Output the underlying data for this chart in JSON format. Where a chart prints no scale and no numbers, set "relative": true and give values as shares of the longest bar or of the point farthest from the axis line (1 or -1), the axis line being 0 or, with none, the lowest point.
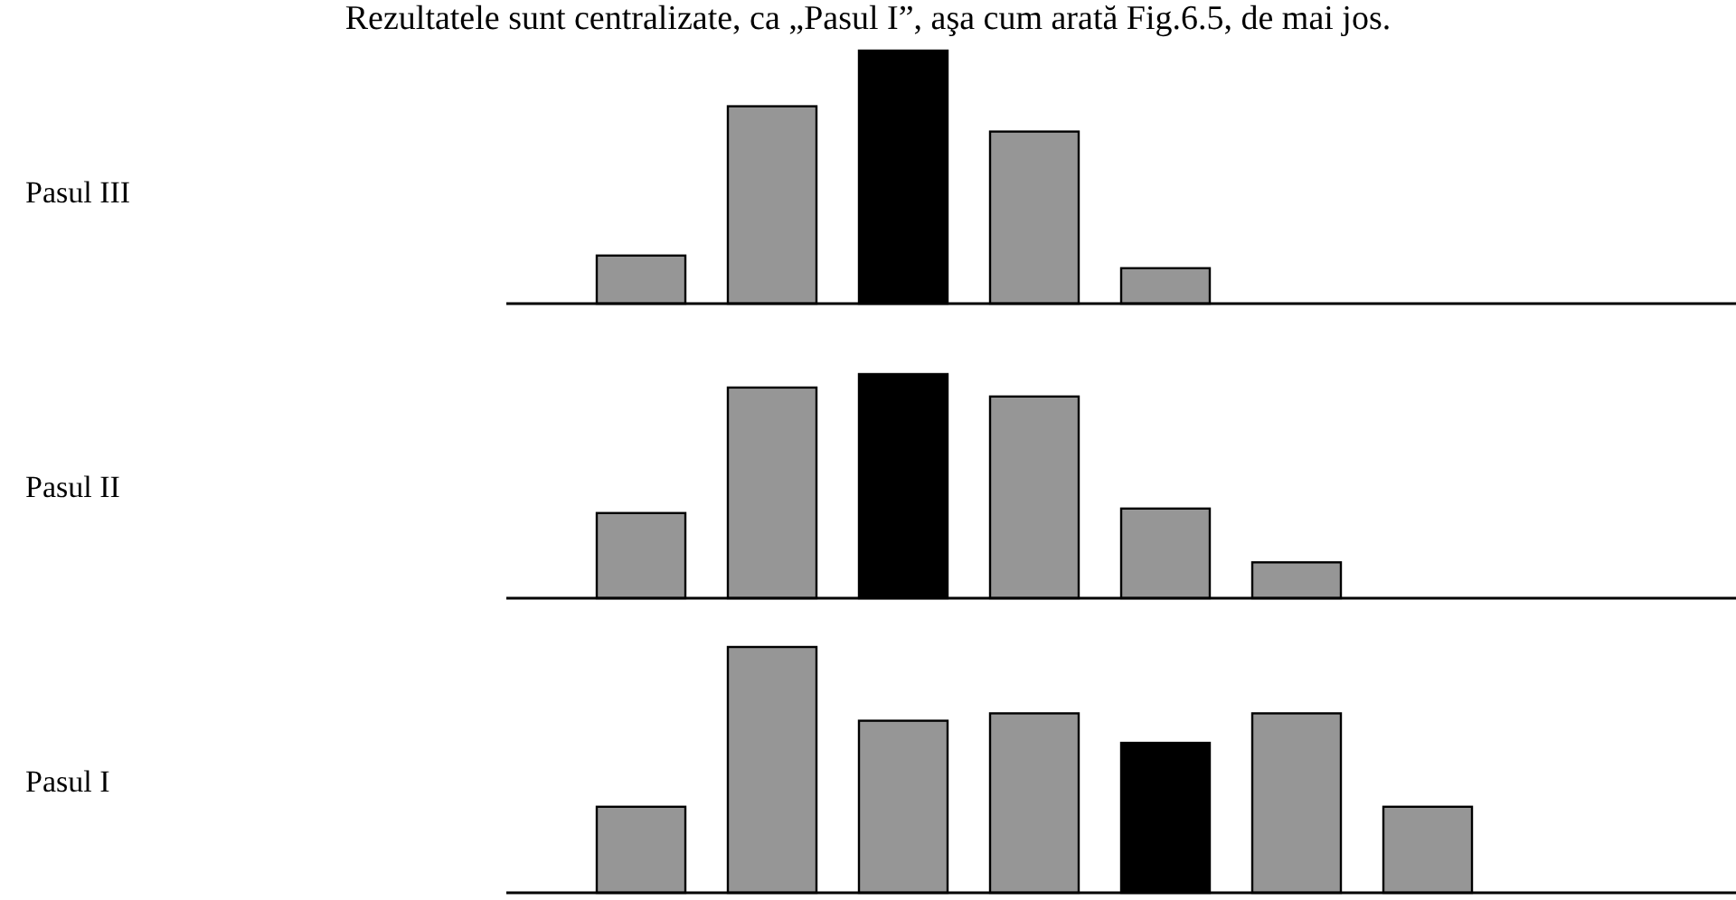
{
  "chart_data": [
    {
      "type": "bar",
      "ylabel": "Pasul III",
      "relative": true,
      "categories": [
        null,
        null,
        null,
        null,
        null
      ],
      "values": [
        0.19,
        0.78,
        1,
        0.68,
        0.14
      ],
      "colors": [
        "#969696",
        "#969696",
        "#000000",
        "#969696",
        "#969696"
      ],
      "annotations": [
        "Rezultatele sunt centralizate, ca „Pasul I”, aşa cum arată Fig.6.5, de mai jos."
      ]
    },
    {
      "type": "bar",
      "ylabel": "Pasul II",
      "relative": true,
      "categories": [
        null,
        null,
        null,
        null,
        null,
        null
      ],
      "values": [
        0.38,
        0.94,
        1,
        0.9,
        0.4,
        0.16
      ],
      "colors": [
        "#969696",
        "#969696",
        "#000000",
        "#969696",
        "#969696",
        "#969696"
      ]
    },
    {
      "type": "bar",
      "ylabel": "Pasul I",
      "relative": true,
      "categories": [
        null,
        null,
        null,
        null,
        null,
        null,
        null
      ],
      "values": [
        0.35,
        1,
        0.7,
        0.73,
        0.61,
        0.73,
        0.35
      ],
      "colors": [
        "#969696",
        "#969696",
        "#969696",
        "#969696",
        "#000000",
        "#969696",
        "#969696"
      ]
    }
  ]
}
